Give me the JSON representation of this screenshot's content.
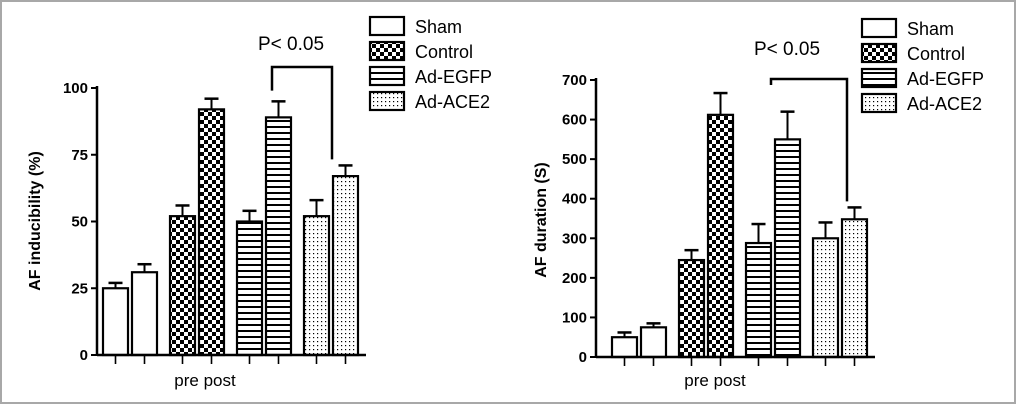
{
  "chart_data": [
    {
      "type": "bar",
      "ylabel": "AF inducibility (%)",
      "xlabel": "pre post",
      "ylim": [
        0,
        100
      ],
      "yticks": [
        0,
        25,
        50,
        75,
        100
      ],
      "categories": [
        "pre",
        "post"
      ],
      "series": [
        {
          "name": "Sham",
          "values": [
            25,
            31
          ],
          "errors": [
            2,
            3
          ]
        },
        {
          "name": "Control",
          "values": [
            52,
            92
          ],
          "errors": [
            4,
            4
          ]
        },
        {
          "name": "Ad-EGFP",
          "values": [
            50,
            89
          ],
          "errors": [
            4,
            6
          ]
        },
        {
          "name": "Ad-ACE2",
          "values": [
            52,
            67
          ],
          "errors": [
            6,
            4
          ]
        }
      ],
      "annotation": "P< 0.05",
      "legend_position": "top-right"
    },
    {
      "type": "bar",
      "ylabel": "AF duration (S)",
      "xlabel": "pre post",
      "ylim": [
        0,
        700
      ],
      "yticks": [
        0,
        100,
        200,
        300,
        400,
        500,
        600,
        700
      ],
      "categories": [
        "pre",
        "post"
      ],
      "series": [
        {
          "name": "Sham",
          "values": [
            50,
            75
          ],
          "errors": [
            12,
            10
          ]
        },
        {
          "name": "Control",
          "values": [
            245,
            612
          ],
          "errors": [
            25,
            55
          ]
        },
        {
          "name": "Ad-EGFP",
          "values": [
            288,
            550
          ],
          "errors": [
            48,
            70
          ]
        },
        {
          "name": "Ad-ACE2",
          "values": [
            300,
            348
          ],
          "errors": [
            40,
            30
          ]
        }
      ],
      "annotation": "P< 0.05",
      "legend_position": "top-right"
    }
  ],
  "patterns": [
    "empty",
    "checker",
    "hstripe",
    "dots"
  ]
}
